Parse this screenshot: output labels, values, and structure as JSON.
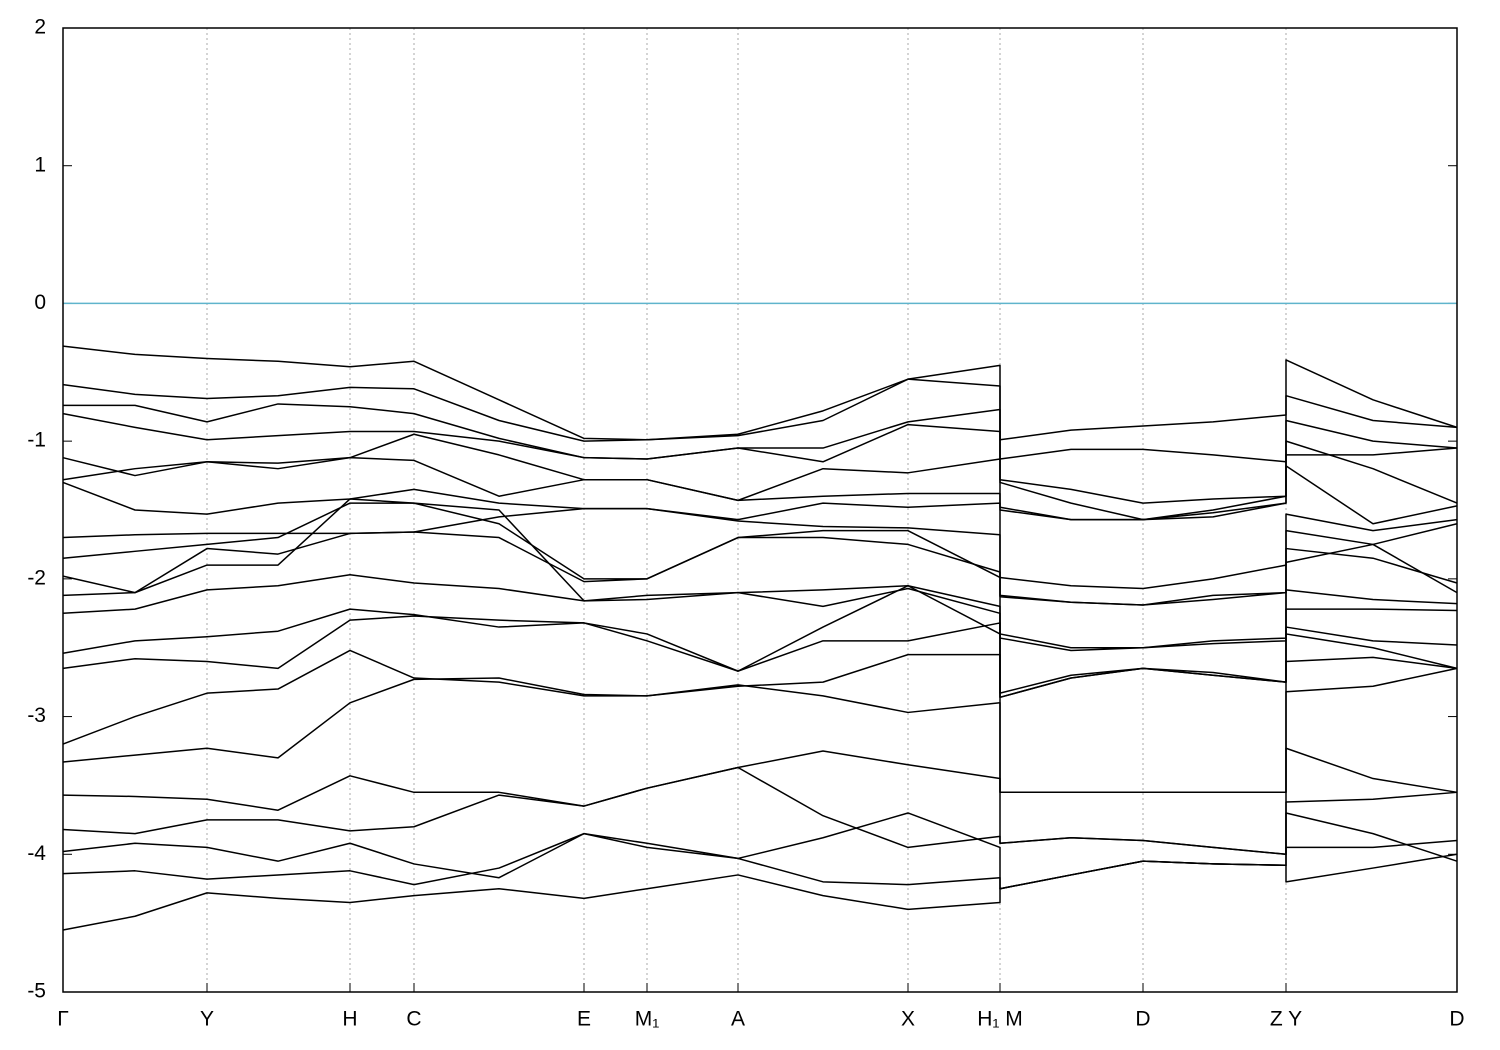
{
  "chart_data": {
    "type": "line",
    "x": [
      0,
      0.72,
      1.44,
      2.15,
      2.87,
      3.51,
      4.36,
      5.21,
      5.84,
      6.75,
      7.6,
      8.45,
      9.37,
      9.37,
      10.08,
      10.8,
      11.5,
      12.23,
      12.23,
      13.1,
      13.94
    ],
    "xlim": [
      0,
      13.94
    ],
    "xticks": [
      {
        "value": 0,
        "label": "Γ"
      },
      {
        "value": 1.44,
        "label": "Y"
      },
      {
        "value": 2.87,
        "label": "H"
      },
      {
        "value": 3.51,
        "label": "C"
      },
      {
        "value": 5.21,
        "label": "E"
      },
      {
        "value": 5.84,
        "label": "M₁"
      },
      {
        "value": 6.75,
        "label": "A"
      },
      {
        "value": 8.45,
        "label": "X"
      },
      {
        "value": 9.37,
        "label": "H₁ M"
      },
      {
        "value": 10.8,
        "label": "D"
      },
      {
        "value": 12.23,
        "label": "Z Y"
      },
      {
        "value": 13.94,
        "label": "D"
      }
    ],
    "ylim": [
      -5,
      2
    ],
    "yticks": [
      -5,
      -4,
      -3,
      -2,
      -1,
      0,
      1,
      2
    ],
    "grid": "x",
    "line_color": "#000000",
    "hline": 0,
    "hline_color": "#5fb4cc",
    "series": [
      {
        "values": [
          -0.31,
          -0.37,
          -0.4,
          -0.42,
          -0.46,
          -0.42,
          -0.7,
          -0.98,
          -0.99,
          -0.95,
          -0.78,
          -0.55,
          -0.45,
          -0.99,
          -0.92,
          -0.89,
          -0.86,
          -0.81,
          -0.41,
          -0.7,
          -0.9
        ]
      },
      {
        "values": [
          -0.59,
          -0.66,
          -0.69,
          -0.67,
          -0.61,
          -0.62,
          -0.85,
          -1.0,
          -0.99,
          -0.96,
          -0.85,
          -0.55,
          -0.6,
          -1.13,
          -1.06,
          -1.06,
          -1.1,
          -1.15,
          -0.67,
          -0.85,
          -0.9
        ]
      },
      {
        "values": [
          -0.74,
          -0.74,
          -0.86,
          -0.73,
          -0.75,
          -0.8,
          -0.98,
          -1.12,
          -1.13,
          -1.05,
          -1.05,
          -0.86,
          -0.77,
          -1.28,
          -1.35,
          -1.45,
          -1.42,
          -1.4,
          -0.85,
          -1.0,
          -1.05
        ]
      },
      {
        "values": [
          -0.8,
          -0.9,
          -0.99,
          -0.96,
          -0.93,
          -0.93,
          -1.0,
          -1.12,
          -1.13,
          -1.05,
          -1.15,
          -0.88,
          -0.93,
          -1.3,
          -1.45,
          -1.57,
          -1.55,
          -1.45,
          -1.0,
          -1.2,
          -1.45
        ]
      },
      {
        "values": [
          -1.12,
          -1.25,
          -1.15,
          -1.16,
          -1.12,
          -0.95,
          -1.1,
          -1.28,
          -1.28,
          -1.43,
          -1.2,
          -1.23,
          -1.13,
          -1.48,
          -1.57,
          -1.57,
          -1.52,
          -1.45,
          -1.1,
          -1.1,
          -1.05
        ]
      },
      {
        "values": [
          -1.28,
          -1.2,
          -1.15,
          -1.2,
          -1.12,
          -1.14,
          -1.4,
          -1.28,
          -1.28,
          -1.43,
          -1.4,
          -1.38,
          -1.38,
          -1.5,
          -1.57,
          -1.57,
          -1.5,
          -1.4,
          -1.18,
          -1.6,
          -1.47
        ]
      },
      {
        "values": [
          -1.3,
          -1.5,
          -1.53,
          -1.45,
          -1.42,
          -1.35,
          -1.45,
          -1.49,
          -1.49,
          -1.57,
          -1.45,
          -1.48,
          -1.45,
          -1.99,
          -2.05,
          -2.07,
          -2.0,
          -1.9,
          -1.53,
          -1.65,
          -1.57
        ]
      },
      {
        "values": [
          -1.7,
          -1.68,
          -1.67,
          -1.67,
          -1.67,
          -1.66,
          -1.55,
          -1.49,
          -1.49,
          -1.58,
          -1.62,
          -1.63,
          -1.68,
          -2.12,
          -2.17,
          -2.19,
          -2.15,
          -2.1,
          -1.65,
          -1.75,
          -1.6
        ]
      },
      {
        "values": [
          -1.85,
          -1.8,
          -1.75,
          -1.7,
          -1.45,
          -1.45,
          -1.6,
          -2.0,
          -2.0,
          -1.7,
          -1.7,
          -1.75,
          -1.95,
          -2.13,
          -2.17,
          -2.19,
          -2.12,
          -2.1,
          -1.78,
          -1.85,
          -2.03
        ]
      },
      {
        "values": [
          -1.98,
          -2.1,
          -1.78,
          -1.82,
          -1.67,
          -1.66,
          -1.7,
          -2.02,
          -2.0,
          -1.7,
          -1.65,
          -1.65,
          -1.99,
          -2.4,
          -2.5,
          -2.5,
          -2.45,
          -2.43,
          -1.88,
          -1.75,
          -2.1
        ]
      },
      {
        "values": [
          -2.12,
          -2.1,
          -1.9,
          -1.9,
          -1.42,
          -1.45,
          -1.5,
          -2.16,
          -2.15,
          -2.1,
          -2.08,
          -2.05,
          -2.2,
          -2.43,
          -2.52,
          -2.5,
          -2.47,
          -2.45,
          -2.08,
          -2.15,
          -2.18
        ]
      },
      {
        "values": [
          -2.25,
          -2.22,
          -2.08,
          -2.05,
          -1.97,
          -2.03,
          -2.07,
          -2.16,
          -2.12,
          -2.1,
          -2.2,
          -2.07,
          -2.25,
          -2.83,
          -2.7,
          -2.65,
          -2.68,
          -2.75,
          -2.22,
          -2.22,
          -2.23
        ]
      },
      {
        "values": [
          -2.54,
          -2.45,
          -2.42,
          -2.38,
          -2.22,
          -2.26,
          -2.35,
          -2.32,
          -2.45,
          -2.67,
          -2.45,
          -2.45,
          -2.32,
          -2.86,
          -2.72,
          -2.65,
          -2.7,
          -2.75,
          -2.35,
          -2.45,
          -2.48
        ]
      },
      {
        "values": [
          -2.65,
          -2.58,
          -2.6,
          -2.65,
          -2.3,
          -2.27,
          -2.3,
          -2.32,
          -2.4,
          -2.67,
          -2.35,
          -2.05,
          -2.4,
          -2.86,
          -2.72,
          -2.65,
          -2.7,
          -2.75,
          -2.4,
          -2.5,
          -2.65
        ]
      },
      {
        "values": [
          -3.2,
          -3.0,
          -2.83,
          -2.8,
          -2.52,
          -2.72,
          -2.75,
          -2.85,
          -2.85,
          -2.78,
          -2.75,
          -2.55,
          -2.55,
          -3.55,
          -3.55,
          -3.55,
          -3.55,
          -3.55,
          -2.6,
          -2.57,
          -2.65
        ]
      },
      {
        "values": [
          -3.33,
          -3.28,
          -3.23,
          -3.3,
          -2.9,
          -2.73,
          -2.72,
          -2.84,
          -2.85,
          -2.77,
          -2.85,
          -2.97,
          -2.9,
          -3.55,
          -3.55,
          -3.55,
          -3.55,
          -3.55,
          -2.82,
          -2.78,
          -2.65
        ]
      },
      {
        "values": [
          -3.57,
          -3.58,
          -3.6,
          -3.68,
          -3.43,
          -3.55,
          -3.55,
          -3.65,
          -3.52,
          -3.37,
          -3.25,
          -3.35,
          -3.45,
          -3.92,
          -3.88,
          -3.9,
          -3.95,
          -4.0,
          -3.23,
          -3.45,
          -3.55
        ]
      },
      {
        "values": [
          -3.82,
          -3.85,
          -3.75,
          -3.75,
          -3.83,
          -3.8,
          -3.57,
          -3.65,
          -3.52,
          -3.37,
          -3.72,
          -3.95,
          -3.87,
          -3.92,
          -3.88,
          -3.9,
          -3.95,
          -4.0,
          -3.62,
          -3.6,
          -3.55
        ]
      },
      {
        "values": [
          -3.98,
          -3.92,
          -3.95,
          -4.05,
          -3.92,
          -4.07,
          -4.17,
          -3.85,
          -3.92,
          -4.03,
          -3.88,
          -3.7,
          -3.95,
          -4.25,
          -4.15,
          -4.05,
          -4.07,
          -4.08,
          -3.7,
          -3.85,
          -4.05
        ]
      },
      {
        "values": [
          -4.14,
          -4.12,
          -4.18,
          -4.15,
          -4.12,
          -4.22,
          -4.1,
          -3.85,
          -3.95,
          -4.03,
          -4.2,
          -4.22,
          -4.17,
          -4.25,
          -4.15,
          -4.05,
          -4.07,
          -4.08,
          -3.95,
          -3.95,
          -3.9
        ]
      },
      {
        "values": [
          -4.55,
          -4.45,
          -4.28,
          -4.32,
          -4.35,
          -4.3,
          -4.25,
          -4.32,
          -4.25,
          -4.15,
          -4.3,
          -4.4,
          -4.35,
          -4.25,
          -4.15,
          -4.05,
          -4.07,
          -4.08,
          -4.2,
          -4.1,
          -4.0
        ]
      }
    ]
  }
}
